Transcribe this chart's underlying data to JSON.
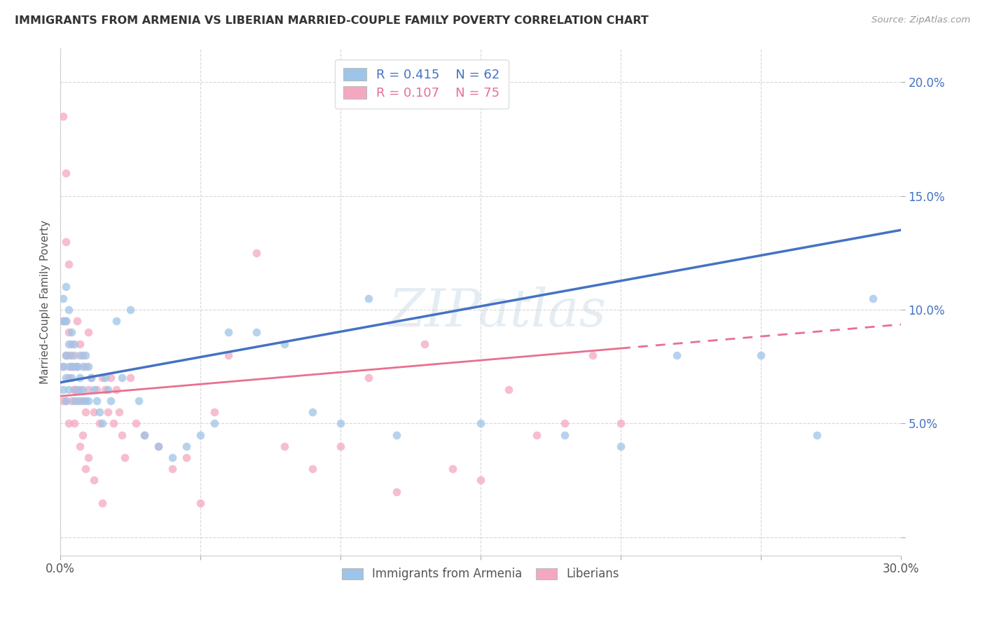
{
  "title": "IMMIGRANTS FROM ARMENIA VS LIBERIAN MARRIED-COUPLE FAMILY POVERTY CORRELATION CHART",
  "source": "Source: ZipAtlas.com",
  "ylabel": "Married-Couple Family Poverty",
  "legend_blue_r": "R = 0.415",
  "legend_blue_n": "N = 62",
  "legend_pink_r": "R = 0.107",
  "legend_pink_n": "N = 75",
  "legend_label_blue": "Immigrants from Armenia",
  "legend_label_pink": "Liberians",
  "watermark": "ZIPatlas",
  "blue_color": "#9ec4e8",
  "pink_color": "#f4a8bf",
  "blue_line_color": "#4472c4",
  "pink_line_color": "#e87090",
  "xlim": [
    0.0,
    0.3
  ],
  "ylim": [
    -0.008,
    0.215
  ],
  "blue_line_x0": 0.0,
  "blue_line_y0": 0.068,
  "blue_line_x1": 0.3,
  "blue_line_y1": 0.135,
  "pink_line_x0": 0.0,
  "pink_line_y0": 0.062,
  "pink_line_x1": 0.2,
  "pink_line_y1": 0.083,
  "arm_x": [
    0.001,
    0.001,
    0.001,
    0.001,
    0.002,
    0.002,
    0.002,
    0.002,
    0.002,
    0.003,
    0.003,
    0.003,
    0.003,
    0.004,
    0.004,
    0.004,
    0.005,
    0.005,
    0.005,
    0.006,
    0.006,
    0.007,
    0.007,
    0.007,
    0.008,
    0.008,
    0.009,
    0.009,
    0.01,
    0.01,
    0.011,
    0.012,
    0.013,
    0.014,
    0.015,
    0.016,
    0.017,
    0.018,
    0.02,
    0.022,
    0.025,
    0.028,
    0.03,
    0.035,
    0.04,
    0.045,
    0.05,
    0.055,
    0.06,
    0.07,
    0.08,
    0.09,
    0.1,
    0.11,
    0.12,
    0.15,
    0.18,
    0.2,
    0.22,
    0.25,
    0.27,
    0.29
  ],
  "arm_y": [
    0.105,
    0.095,
    0.075,
    0.065,
    0.11,
    0.095,
    0.08,
    0.07,
    0.06,
    0.1,
    0.085,
    0.075,
    0.065,
    0.09,
    0.08,
    0.07,
    0.085,
    0.075,
    0.06,
    0.075,
    0.065,
    0.08,
    0.07,
    0.06,
    0.075,
    0.065,
    0.08,
    0.06,
    0.075,
    0.06,
    0.07,
    0.065,
    0.06,
    0.055,
    0.05,
    0.07,
    0.065,
    0.06,
    0.095,
    0.07,
    0.1,
    0.06,
    0.045,
    0.04,
    0.035,
    0.04,
    0.045,
    0.05,
    0.09,
    0.09,
    0.085,
    0.055,
    0.05,
    0.105,
    0.045,
    0.05,
    0.045,
    0.04,
    0.08,
    0.08,
    0.045,
    0.105
  ],
  "lib_x": [
    0.001,
    0.001,
    0.001,
    0.001,
    0.002,
    0.002,
    0.002,
    0.002,
    0.003,
    0.003,
    0.003,
    0.003,
    0.004,
    0.004,
    0.004,
    0.005,
    0.005,
    0.005,
    0.006,
    0.006,
    0.007,
    0.007,
    0.008,
    0.008,
    0.009,
    0.009,
    0.01,
    0.01,
    0.011,
    0.012,
    0.013,
    0.014,
    0.015,
    0.016,
    0.017,
    0.018,
    0.019,
    0.02,
    0.021,
    0.022,
    0.023,
    0.025,
    0.027,
    0.03,
    0.035,
    0.04,
    0.045,
    0.05,
    0.055,
    0.06,
    0.07,
    0.08,
    0.09,
    0.1,
    0.11,
    0.12,
    0.13,
    0.14,
    0.15,
    0.16,
    0.17,
    0.18,
    0.19,
    0.2,
    0.002,
    0.003,
    0.004,
    0.005,
    0.006,
    0.007,
    0.008,
    0.009,
    0.01,
    0.012,
    0.015
  ],
  "lib_y": [
    0.185,
    0.095,
    0.075,
    0.06,
    0.16,
    0.095,
    0.08,
    0.06,
    0.09,
    0.08,
    0.07,
    0.05,
    0.085,
    0.075,
    0.06,
    0.08,
    0.065,
    0.05,
    0.095,
    0.075,
    0.085,
    0.065,
    0.08,
    0.06,
    0.075,
    0.055,
    0.09,
    0.065,
    0.07,
    0.055,
    0.065,
    0.05,
    0.07,
    0.065,
    0.055,
    0.07,
    0.05,
    0.065,
    0.055,
    0.045,
    0.035,
    0.07,
    0.05,
    0.045,
    0.04,
    0.03,
    0.035,
    0.015,
    0.055,
    0.08,
    0.125,
    0.04,
    0.03,
    0.04,
    0.07,
    0.02,
    0.085,
    0.03,
    0.025,
    0.065,
    0.045,
    0.05,
    0.08,
    0.05,
    0.13,
    0.12,
    0.075,
    0.065,
    0.06,
    0.04,
    0.045,
    0.03,
    0.035,
    0.025,
    0.015
  ]
}
